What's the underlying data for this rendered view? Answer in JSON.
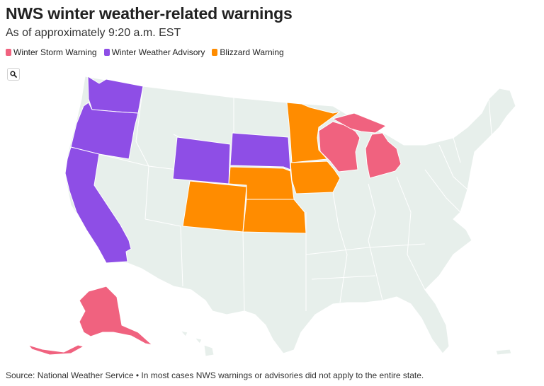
{
  "header": {
    "title": "NWS winter weather-related warnings",
    "subtitle": "As of approximately 9:20 a.m. EST"
  },
  "legend": [
    {
      "label": "Winter Storm Warning",
      "color": "#f0627f"
    },
    {
      "label": "Winter Weather Advisory",
      "color": "#8e4ee6"
    },
    {
      "label": "Blizzard Warning",
      "color": "#ff8c00"
    }
  ],
  "colors": {
    "none": "#e7efeb",
    "winter_storm": "#f0627f",
    "winter_weather": "#8e4ee6",
    "blizzard": "#ff8c00"
  },
  "search": {
    "icon": "search-icon"
  },
  "states": {
    "winter_storm_warning": [
      "Wisconsin",
      "Michigan",
      "Alaska"
    ],
    "winter_weather_advisory": [
      "Washington",
      "Oregon",
      "California",
      "Wyoming",
      "South Dakota"
    ],
    "blizzard_warning": [
      "Minnesota",
      "Iowa",
      "Nebraska",
      "Colorado",
      "Kansas"
    ]
  },
  "footer": {
    "source": "Source: National Weather Service • In most cases NWS warnings or advisories did not apply to the entire state."
  }
}
